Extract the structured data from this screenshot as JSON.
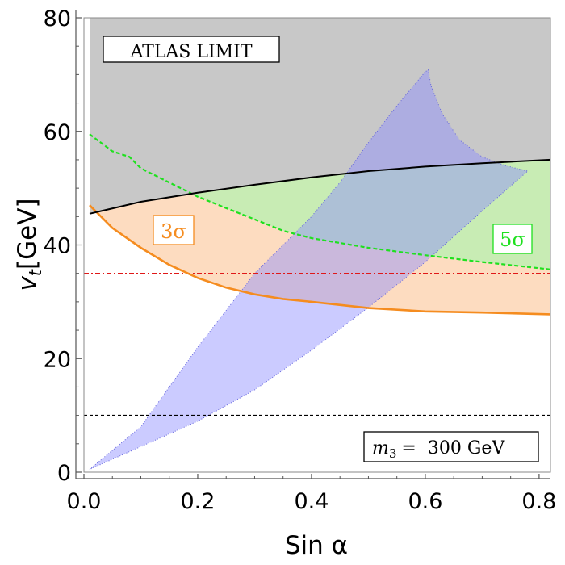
{
  "chart_data": {
    "type": "area",
    "xlabel": "Sin α",
    "ylabel_main": "v",
    "ylabel_sub": "t",
    "ylabel_unit": "[GeV]",
    "xlim": [
      0.0,
      0.82
    ],
    "ylim": [
      0,
      80
    ],
    "x_ticks": [
      0.0,
      0.2,
      0.4,
      0.6,
      0.8
    ],
    "x_tick_labels": [
      "0.0",
      "0.2",
      "0.4",
      "0.6",
      "0.8"
    ],
    "y_ticks": [
      0,
      20,
      40,
      60,
      80
    ],
    "y_tick_labels": [
      "0",
      "20",
      "40",
      "60",
      "80"
    ],
    "annotations": {
      "atlas": "ATLAS LIMIT",
      "mass_symbol": "m",
      "mass_sub": "3",
      "mass_value": "=  300 GeV",
      "sigma3": "3σ",
      "sigma5": "5σ"
    },
    "series": [
      {
        "name": "atlas-limit",
        "color": "#000000",
        "fill": "#c8c8c8",
        "x": [
          0.01,
          0.1,
          0.2,
          0.3,
          0.4,
          0.5,
          0.6,
          0.7,
          0.82
        ],
        "y": [
          45.5,
          47.6,
          49.2,
          50.6,
          51.9,
          53.0,
          53.8,
          54.4,
          55.0
        ]
      },
      {
        "name": "3-sigma",
        "color": "#f58c1f",
        "fill": "#fddcc0",
        "x": [
          0.01,
          0.05,
          0.1,
          0.15,
          0.2,
          0.25,
          0.3,
          0.35,
          0.4,
          0.5,
          0.6,
          0.7,
          0.82
        ],
        "y": [
          47.0,
          43.0,
          39.5,
          36.5,
          34.2,
          32.5,
          31.3,
          30.5,
          30.0,
          28.9,
          28.3,
          28.1,
          27.8
        ]
      },
      {
        "name": "5-sigma",
        "color": "#1fe01f",
        "fill": "#c8ecb4",
        "x": [
          0.01,
          0.05,
          0.08,
          0.1,
          0.15,
          0.2,
          0.25,
          0.3,
          0.35,
          0.4,
          0.5,
          0.6,
          0.7,
          0.82
        ],
        "y": [
          59.5,
          56.5,
          55.5,
          53.5,
          51.0,
          48.5,
          46.5,
          44.5,
          42.5,
          41.2,
          39.5,
          38.2,
          37.0,
          35.7
        ]
      },
      {
        "name": "allowed-region",
        "color": "#6464dc",
        "fill": "#8c8cff",
        "x": [
          0.01,
          0.1,
          0.2,
          0.3,
          0.4,
          0.45,
          0.5,
          0.55,
          0.6,
          0.605,
          0.61,
          0.63,
          0.66,
          0.7,
          0.74,
          0.78,
          0.7,
          0.6,
          0.5,
          0.4,
          0.3,
          0.2,
          0.1,
          0.01
        ],
        "y": [
          0.5,
          8.0,
          22.0,
          35.0,
          45.0,
          51.0,
          58.0,
          64.5,
          70.5,
          70.8,
          68.0,
          63.0,
          58.5,
          55.5,
          54.0,
          53.0,
          46.0,
          37.0,
          29.0,
          21.5,
          14.5,
          9.0,
          4.5,
          0.5
        ]
      },
      {
        "name": "red-dashdot",
        "color": "#e01818",
        "x": [
          0.0,
          0.82
        ],
        "y": [
          35.0,
          35.0
        ]
      },
      {
        "name": "black-dashed",
        "color": "#000000",
        "x": [
          0.0,
          0.82
        ],
        "y": [
          10.0,
          10.0
        ]
      }
    ]
  }
}
